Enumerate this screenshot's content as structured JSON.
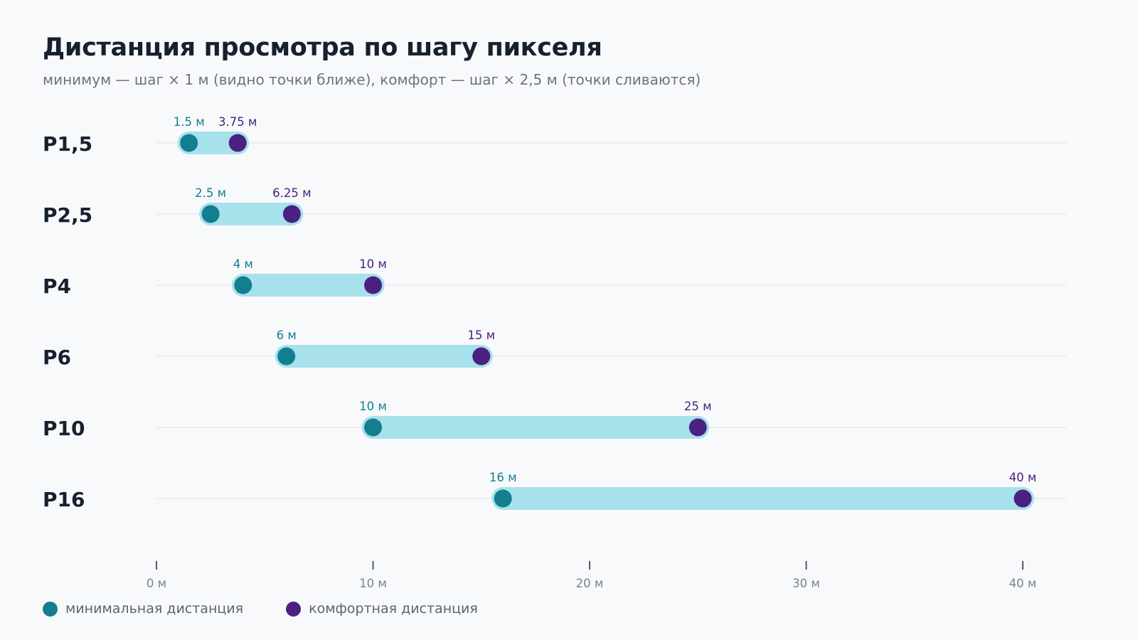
{
  "title": "Дистанция просмотра по шагу пикселя",
  "subtitle": "минимум — шаг × 1 м (видно точки ближе), комфорт — шаг × 2,5 м (точки сливаются)",
  "colors": {
    "min": "#137f8e",
    "comfort": "#4a2080",
    "band": "#a6e1ec",
    "grid": "#e3e6ea",
    "row_label": "#17202e",
    "axis_text": "#7b8390"
  },
  "legend": {
    "min_label": "минимальная дистанция",
    "comfort_label": "комфортная дистанция"
  },
  "chart_data": {
    "type": "dumbbell",
    "title": "Дистанция просмотра по шагу пикселя",
    "subtitle": "минимум — шаг × 1 м (видно точки ближе), комфорт — шаг × 2,5 м (точки сливаются)",
    "categories": [
      "P1,5",
      "P2,5",
      "P4",
      "P6",
      "P10",
      "P16"
    ],
    "series": [
      {
        "name": "минимальная дистанция",
        "values": [
          1.5,
          2.5,
          4,
          6,
          10,
          16
        ],
        "labels": [
          "1.5 м",
          "2.5 м",
          "4 м",
          "6 м",
          "10 м",
          "16 м"
        ]
      },
      {
        "name": "комфортная дистанция",
        "values": [
          3.75,
          6.25,
          10,
          15,
          25,
          40
        ],
        "labels": [
          "3.75 м",
          "6.25 м",
          "10 м",
          "15 м",
          "25 м",
          "40 м"
        ]
      }
    ],
    "xlim": [
      0,
      42
    ],
    "x_ticks": [
      0,
      10,
      20,
      30,
      40
    ],
    "x_tick_labels": [
      "0 м",
      "10 м",
      "20 м",
      "30 м",
      "40 м"
    ],
    "grid": true,
    "legend_position": "bottom-left"
  }
}
